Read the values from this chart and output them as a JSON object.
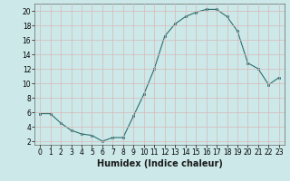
{
  "x": [
    0,
    1,
    2,
    3,
    4,
    5,
    6,
    7,
    8,
    9,
    10,
    11,
    12,
    13,
    14,
    15,
    16,
    17,
    18,
    19,
    20,
    21,
    22,
    23
  ],
  "y": [
    5.8,
    5.8,
    4.5,
    3.5,
    3.0,
    2.8,
    2.0,
    2.5,
    2.5,
    5.5,
    8.5,
    12.0,
    16.5,
    18.2,
    19.2,
    19.8,
    20.2,
    20.2,
    19.2,
    17.2,
    12.8,
    12.0,
    9.8,
    10.8
  ],
  "line_color": "#2d6e6e",
  "marker_color": "#2d6e6e",
  "bg_color": "#cce8e8",
  "grid_color": "#b8d8d0",
  "xlabel": "Humidex (Indice chaleur)",
  "xlim": [
    -0.5,
    23.5
  ],
  "ylim": [
    1.5,
    21.0
  ],
  "xticks": [
    0,
    1,
    2,
    3,
    4,
    5,
    6,
    7,
    8,
    9,
    10,
    11,
    12,
    13,
    14,
    15,
    16,
    17,
    18,
    19,
    20,
    21,
    22,
    23
  ],
  "yticks": [
    2,
    4,
    6,
    8,
    10,
    12,
    14,
    16,
    18,
    20
  ],
  "tick_fontsize": 5.5,
  "xlabel_fontsize": 7.0
}
